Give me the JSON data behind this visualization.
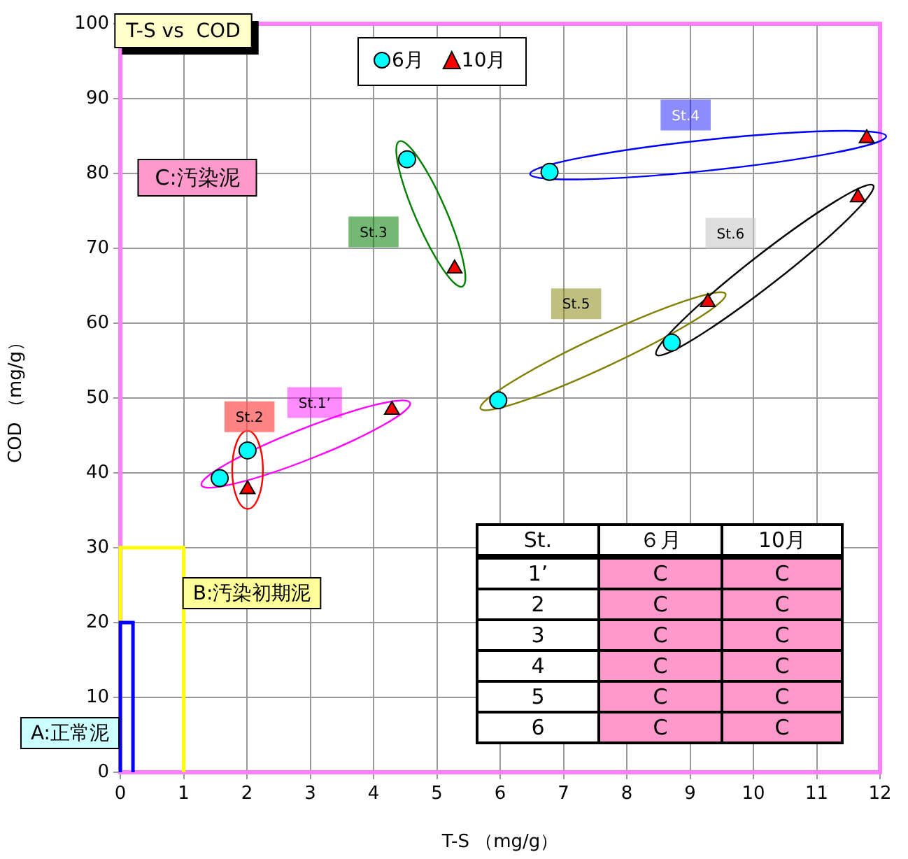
{
  "chart_data": {
    "type": "scatter",
    "title": "T-S vs  COD",
    "xlabel": "T-S （mg/g）",
    "ylabel": "COD （mg/g）",
    "xlim": [
      0,
      12
    ],
    "xticks": [
      0,
      1,
      2,
      3,
      4,
      5,
      6,
      7,
      8,
      9,
      10,
      11,
      12
    ],
    "ylim": [
      0,
      100
    ],
    "yticks": [
      0,
      10,
      20,
      30,
      40,
      50,
      60,
      70,
      80,
      90,
      100
    ],
    "grid": true,
    "legend": "top",
    "series": [
      {
        "name": "6月",
        "color": "#00ffff",
        "marker": "circle",
        "x": [
          1.57,
          2.01,
          4.53,
          6.78,
          5.97,
          8.71
        ],
        "values": [
          39.3,
          43.0,
          81.9,
          80.2,
          49.7,
          57.4
        ]
      },
      {
        "name": "10月",
        "color": "#ff0000",
        "marker": "triangle",
        "x": [
          4.29,
          2.01,
          5.28,
          11.79,
          9.28,
          11.65
        ],
        "values": [
          48.4,
          37.8,
          67.3,
          84.7,
          62.8,
          76.8
        ]
      },
      {
        "type": "line",
        "name": "A:正常泥",
        "color": "#0000ff",
        "marker": "none",
        "x": [
          0,
          0,
          0.2,
          0.2
        ],
        "values": [
          0,
          20,
          20,
          0
        ]
      },
      {
        "type": "line",
        "name": "B:汚染初期泥",
        "color": "#ffff00",
        "marker": "none",
        "x": [
          0,
          0,
          1,
          1
        ],
        "values": [
          0,
          30,
          30,
          0
        ]
      }
    ],
    "annotations": [
      {
        "text": "St.1’",
        "x": 3.07,
        "y": 49.4
      },
      {
        "text": "St.2",
        "x": 2.04,
        "y": 47.5
      },
      {
        "text": "St.3",
        "x": 4.0,
        "y": 72.2
      },
      {
        "text": "St.4",
        "x": 8.93,
        "y": 87.8
      },
      {
        "text": "St.5",
        "x": 7.2,
        "y": 62.6
      },
      {
        "text": "St.6",
        "x": 9.64,
        "y": 72.0
      },
      "C:汚染泥",
      "St.",
      "６月",
      "10月",
      "1’",
      "C",
      "C",
      "2",
      "C",
      "C",
      "3",
      "C",
      "C",
      "4",
      "C",
      "C",
      "5",
      "C",
      "C",
      "6",
      "C",
      "C"
    ]
  }
}
